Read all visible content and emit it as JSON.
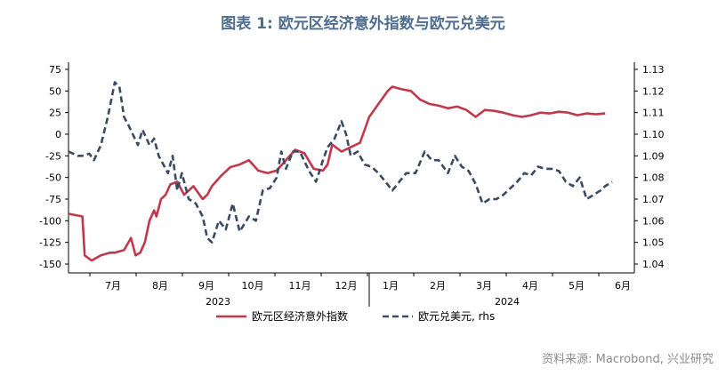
{
  "title": "图表 1: 欧元区经济意外指数与欧元兑美元",
  "source": "资料来源: Macrobond, 兴业研究",
  "chart_data": {
    "type": "line",
    "x_month_labels": [
      "7月",
      "8月",
      "9月",
      "10月",
      "11月",
      "12月",
      "1月",
      "2月",
      "3月",
      "4月",
      "5月",
      "6月"
    ],
    "x_year_labels": [
      "2023",
      "2024"
    ],
    "y_left": {
      "ticks": [
        "75",
        "50",
        "25",
        "0",
        "-25",
        "-50",
        "-75",
        "-100",
        "-125",
        "-150"
      ],
      "ylim": [
        -150,
        75
      ]
    },
    "y_right": {
      "ticks": [
        "1.13",
        "1.12",
        "1.11",
        "1.10",
        "1.09",
        "1.08",
        "1.07",
        "1.06",
        "1.05",
        "1.04"
      ],
      "ylim": [
        1.04,
        1.13
      ]
    },
    "series": [
      {
        "name": "欧元区经济意外指数",
        "axis": "left",
        "color": "#c0384b",
        "style": "solid",
        "t": [
          0.0,
          0.3,
          0.35,
          0.5,
          0.7,
          0.9,
          1.0,
          1.2,
          1.35,
          1.45,
          1.55,
          1.65,
          1.75,
          1.85,
          1.9,
          2.0,
          2.1,
          2.2,
          2.35,
          2.5,
          2.7,
          2.9,
          3.0,
          3.1,
          3.3,
          3.5,
          3.7,
          3.9,
          4.1,
          4.3,
          4.5,
          4.7,
          4.9,
          5.1,
          5.3,
          5.5,
          5.6,
          5.7,
          5.9,
          6.1,
          6.3,
          6.5,
          6.7,
          6.9,
          7.0,
          7.2,
          7.4,
          7.6,
          7.8,
          8.0,
          8.2,
          8.4,
          8.6,
          8.8,
          9.0,
          9.2,
          9.4,
          9.6,
          9.8,
          10.0,
          10.2,
          10.4,
          10.6,
          10.8,
          11.0,
          11.2,
          11.4,
          11.6
        ],
        "values": [
          -92,
          -95,
          -140,
          -146,
          -140,
          -137,
          -137,
          -134,
          -120,
          -140,
          -137,
          -125,
          -100,
          -88,
          -95,
          -75,
          -70,
          -58,
          -55,
          -70,
          -60,
          -75,
          -70,
          -60,
          -48,
          -38,
          -35,
          -30,
          -42,
          -45,
          -42,
          -30,
          -18,
          -22,
          -40,
          -42,
          -35,
          -12,
          -20,
          -15,
          -10,
          20,
          35,
          50,
          55,
          52,
          50,
          40,
          35,
          33,
          30,
          32,
          28,
          20,
          28,
          27,
          25,
          22,
          20,
          22,
          25,
          24,
          26,
          25,
          22,
          24,
          23,
          24
        ]
      },
      {
        "name": "欧元兑美元, rhs",
        "axis": "right",
        "color": "#3b4a63",
        "style": "dashed",
        "t": [
          0.0,
          0.2,
          0.3,
          0.45,
          0.55,
          0.7,
          0.85,
          1.0,
          1.1,
          1.2,
          1.3,
          1.5,
          1.6,
          1.75,
          1.85,
          1.95,
          2.05,
          2.15,
          2.25,
          2.35,
          2.45,
          2.6,
          2.75,
          2.9,
          3.0,
          3.1,
          3.25,
          3.4,
          3.55,
          3.7,
          3.9,
          4.05,
          4.2,
          4.35,
          4.5,
          4.6,
          4.7,
          4.85,
          5.0,
          5.2,
          5.35,
          5.5,
          5.6,
          5.75,
          5.9,
          6.0,
          6.1,
          6.25,
          6.4,
          6.55,
          6.7,
          6.85,
          7.0,
          7.15,
          7.3,
          7.5,
          7.7,
          7.85,
          8.0,
          8.2,
          8.35,
          8.5,
          8.65,
          8.8,
          8.95,
          9.1,
          9.25,
          9.4,
          9.55,
          9.7,
          9.85,
          10.0,
          10.15,
          10.3,
          10.45,
          10.6,
          10.75,
          10.9,
          11.05,
          11.2,
          11.35,
          11.5,
          11.6,
          11.75
        ],
        "values": [
          1.092,
          1.09,
          1.09,
          1.091,
          1.088,
          1.095,
          1.108,
          1.124,
          1.122,
          1.108,
          1.104,
          1.095,
          1.102,
          1.095,
          1.098,
          1.09,
          1.086,
          1.082,
          1.09,
          1.074,
          1.082,
          1.07,
          1.068,
          1.062,
          1.052,
          1.05,
          1.06,
          1.056,
          1.068,
          1.055,
          1.062,
          1.06,
          1.074,
          1.075,
          1.08,
          1.092,
          1.084,
          1.092,
          1.092,
          1.083,
          1.078,
          1.088,
          1.094,
          1.098,
          1.106,
          1.1,
          1.09,
          1.092,
          1.086,
          1.085,
          1.082,
          1.078,
          1.074,
          1.078,
          1.082,
          1.082,
          1.092,
          1.088,
          1.088,
          1.082,
          1.09,
          1.085,
          1.083,
          1.077,
          1.068,
          1.07,
          1.07,
          1.072,
          1.075,
          1.078,
          1.082,
          1.081,
          1.085,
          1.084,
          1.084,
          1.083,
          1.078,
          1.076,
          1.08,
          1.07,
          1.072,
          1.074,
          1.076,
          1.078
        ]
      }
    ],
    "grid": false,
    "legend_position": "bottom"
  }
}
